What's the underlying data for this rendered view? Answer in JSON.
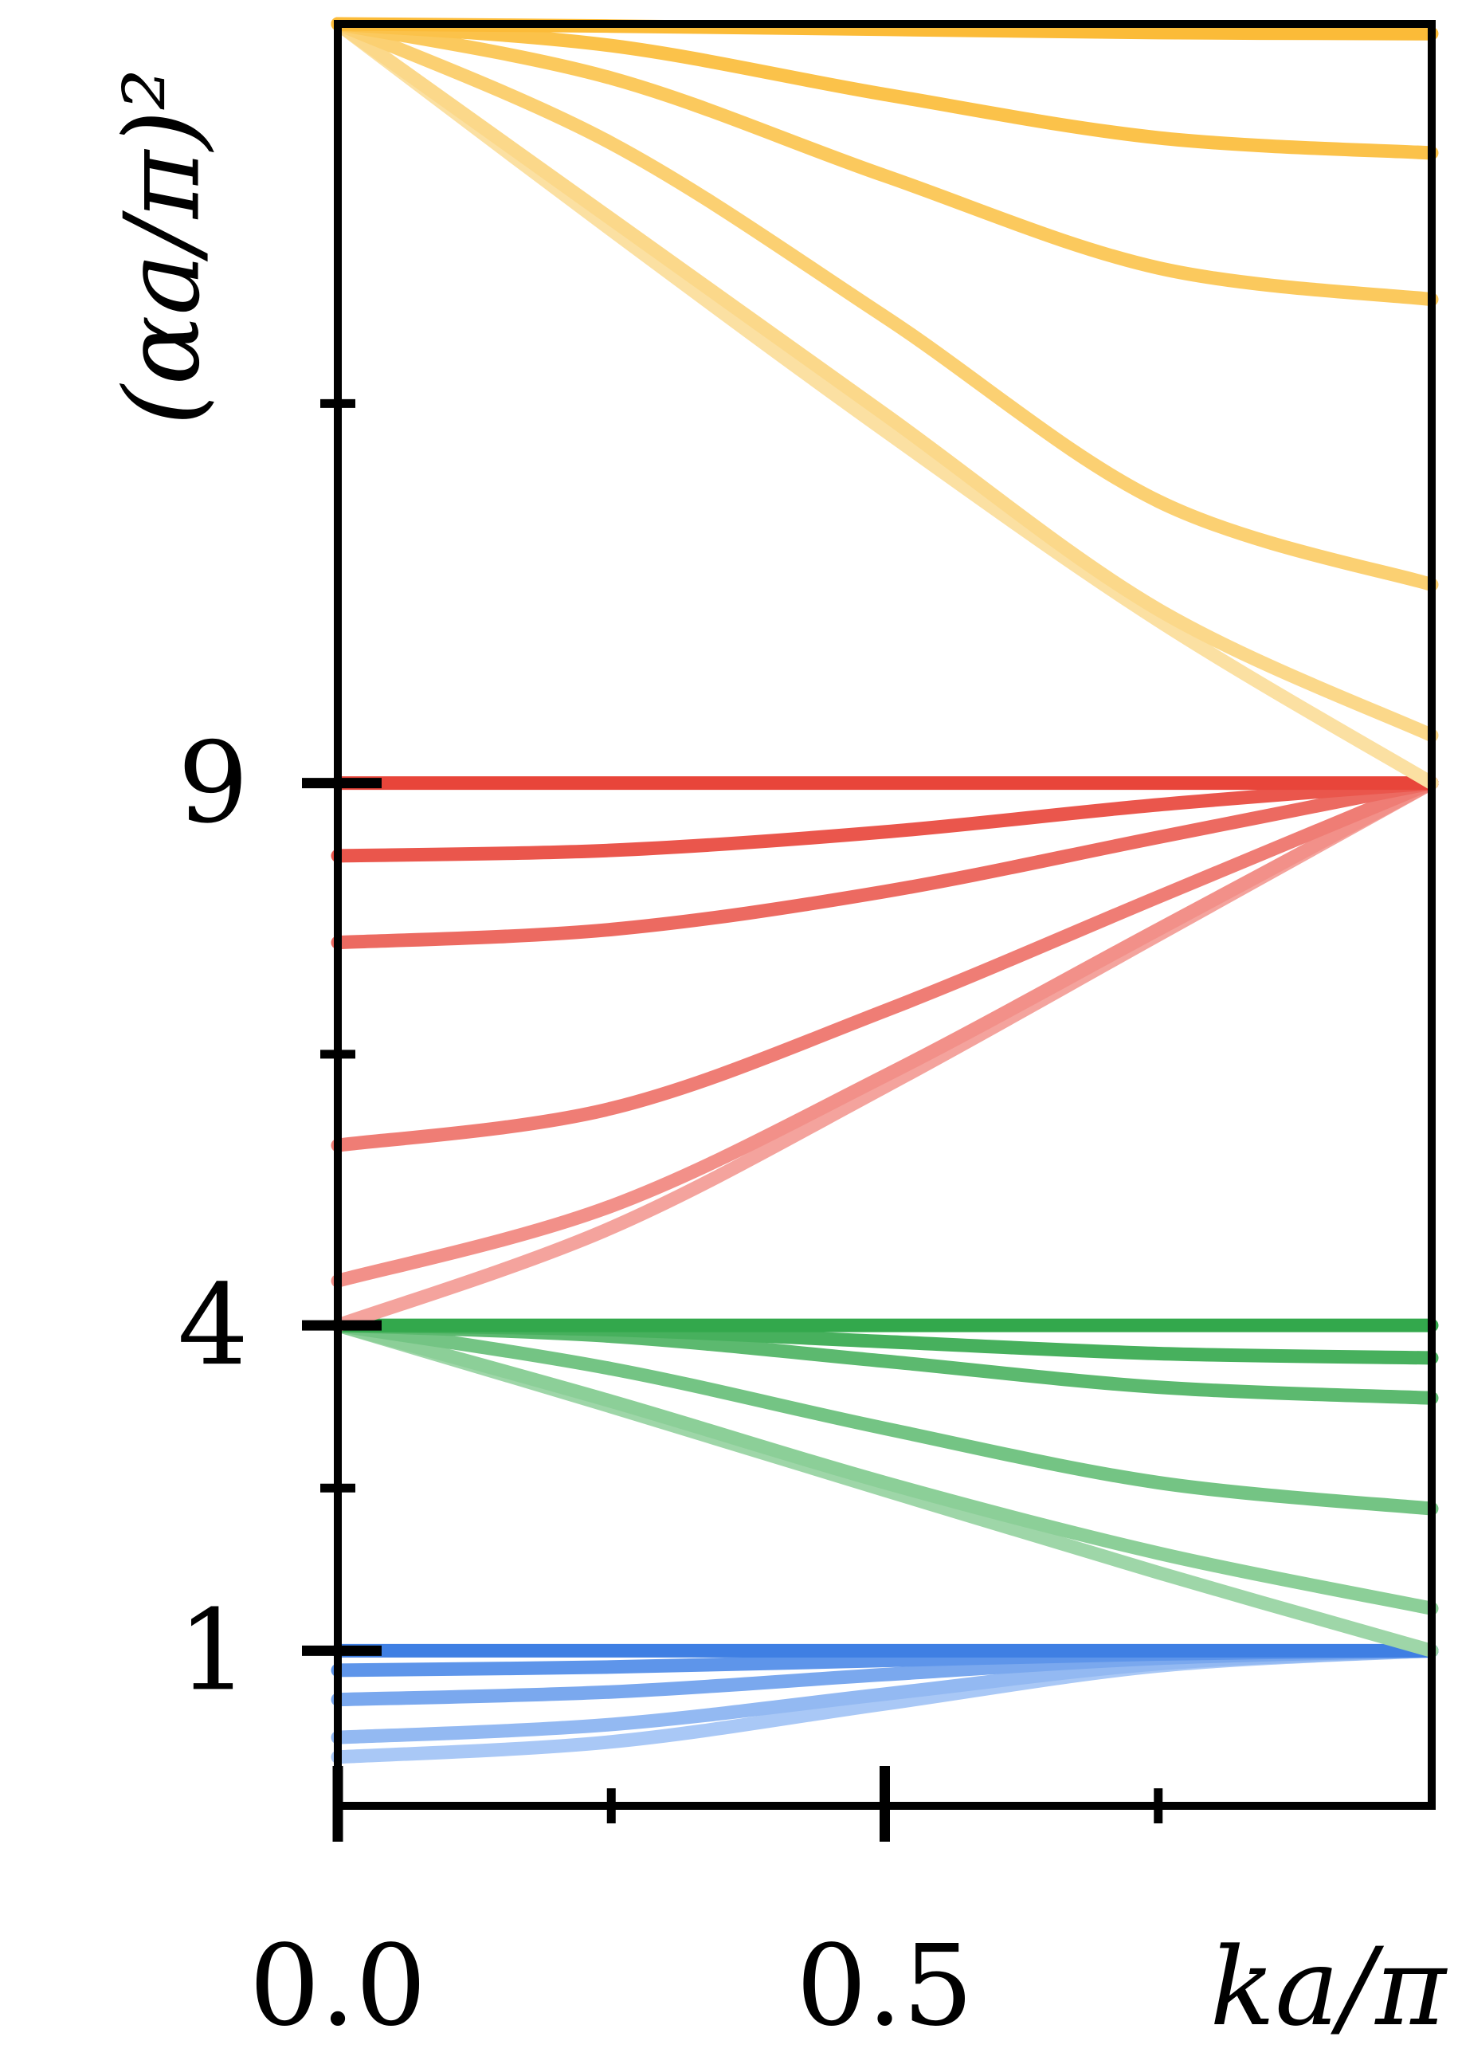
{
  "chart_data": {
    "type": "line",
    "ylabel": "(αa/π)²",
    "xlabel": "ka/π",
    "x": [
      0,
      0.25,
      0.5,
      0.75,
      1
    ],
    "xlim": [
      0,
      1
    ],
    "ylim": [
      -0.43,
      16
    ],
    "xticks": [
      {
        "value": 0,
        "label": "0.0"
      },
      {
        "value": 0.5,
        "label": "0.5"
      }
    ],
    "xminorticks": [
      0.25,
      0.75
    ],
    "yticks": [
      1,
      4,
      9
    ],
    "yminorticks": [
      2.5,
      6.5,
      12.5
    ],
    "series": [
      {
        "color": "#a9c8f6",
        "values": [
          0.02,
          0.16,
          0.51,
          0.86,
          1
        ]
      },
      {
        "color": "#93b9f2",
        "values": [
          0.2,
          0.32,
          0.6,
          0.88,
          1
        ]
      },
      {
        "color": "#7aa8ee",
        "values": [
          0.55,
          0.62,
          0.78,
          0.93,
          1
        ]
      },
      {
        "color": "#5e95ea",
        "values": [
          0.82,
          0.85,
          0.91,
          0.97,
          1
        ]
      },
      {
        "color": "#3f7fe3",
        "values": [
          1,
          1,
          1,
          1,
          1
        ]
      },
      {
        "color": "#9ed6a8",
        "values": [
          4,
          3.25,
          2.48,
          1.72,
          1.0
        ]
      },
      {
        "color": "#8ccf98",
        "values": [
          4,
          3.3,
          2.55,
          1.9,
          1.39
        ]
      },
      {
        "color": "#74c484",
        "values": [
          4,
          3.6,
          3.05,
          2.55,
          2.31
        ]
      },
      {
        "color": "#5cb96f",
        "values": [
          4,
          3.9,
          3.67,
          3.43,
          3.33
        ]
      },
      {
        "color": "#47b05d",
        "values": [
          4,
          3.96,
          3.85,
          3.74,
          3.7
        ]
      },
      {
        "color": "#33a84c",
        "values": [
          4,
          4,
          4,
          4,
          4
        ]
      },
      {
        "color": "#f4a39d",
        "values": [
          4,
          4.9,
          6.2,
          7.6,
          9
        ]
      },
      {
        "color": "#f29089",
        "values": [
          4.41,
          5.1,
          6.3,
          7.65,
          9
        ]
      },
      {
        "color": "#ef7d75",
        "values": [
          5.66,
          6.0,
          6.9,
          7.95,
          9
        ]
      },
      {
        "color": "#ec6a61",
        "values": [
          7.53,
          7.65,
          8.0,
          8.5,
          9
        ]
      },
      {
        "color": "#ea564c",
        "values": [
          8.33,
          8.38,
          8.55,
          8.8,
          9
        ]
      },
      {
        "color": "#e8453a",
        "values": [
          9,
          9,
          9,
          9,
          9
        ]
      },
      {
        "color": "#fbe0a2",
        "values": [
          16,
          14.1,
          12.25,
          10.5,
          9
        ]
      },
      {
        "color": "#fbd88a",
        "values": [
          16,
          14.2,
          12.4,
          10.6,
          9.44
        ]
      },
      {
        "color": "#fbd072",
        "values": [
          16,
          14.9,
          13.3,
          11.6,
          10.83
        ]
      },
      {
        "color": "#fbc95d",
        "values": [
          16,
          15.5,
          14.6,
          13.75,
          13.46
        ]
      },
      {
        "color": "#fbc24a",
        "values": [
          16,
          15.8,
          15.35,
          14.95,
          14.81
        ]
      },
      {
        "color": "#fbbb38",
        "values": [
          16,
          15.98,
          15.95,
          15.92,
          15.91
        ]
      }
    ]
  }
}
